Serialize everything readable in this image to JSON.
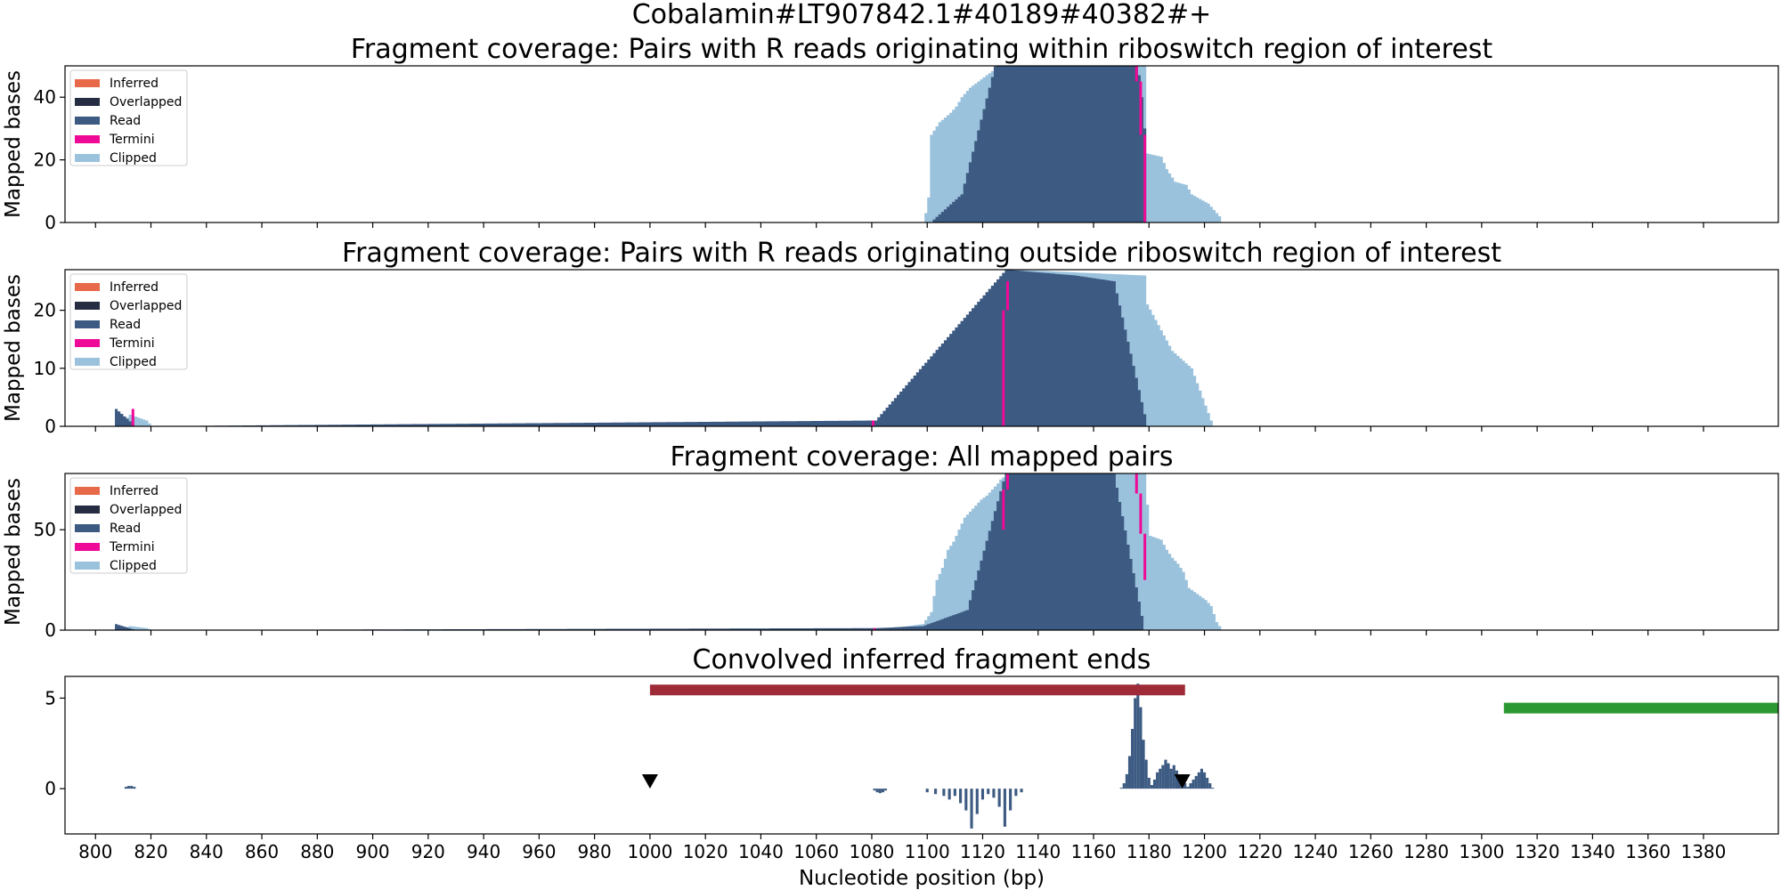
{
  "figure": {
    "suptitle": "Cobalamin#LT907842.1#40189#40382#+",
    "xlabel": "Nucleotide position (bp)",
    "ylabel": "Mapped bases",
    "x_ticks": [
      800,
      820,
      840,
      860,
      880,
      900,
      920,
      940,
      960,
      980,
      1000,
      1020,
      1040,
      1060,
      1080,
      1100,
      1120,
      1140,
      1160,
      1180,
      1200,
      1220,
      1240,
      1260,
      1280,
      1300,
      1320,
      1340,
      1360,
      1380
    ],
    "legend": [
      {
        "label": "Inferred",
        "color": "#e8694a"
      },
      {
        "label": "Overlapped",
        "color": "#262d42"
      },
      {
        "label": "Read",
        "color": "#3c5a82"
      },
      {
        "label": "Termini",
        "color": "#ee0a96"
      },
      {
        "label": "Clipped",
        "color": "#9bc2dc"
      }
    ]
  },
  "chart_data": [
    {
      "type": "area",
      "title": "Fragment coverage: Pairs with R reads originating within riboswitch region of interest",
      "ylabel": "Mapped bases",
      "xlim": [
        789,
        1407
      ],
      "ylim": [
        0,
        50
      ],
      "yticks": [
        0,
        20,
        40
      ],
      "series": [
        {
          "name": "Clipped",
          "color": "#9bc2dc",
          "points": [
            [
              1099,
              3
            ],
            [
              1100,
              8
            ],
            [
              1101,
              28
            ],
            [
              1104,
              32
            ],
            [
              1108,
              35
            ],
            [
              1110,
              37
            ],
            [
              1112,
              40
            ],
            [
              1115,
              43
            ],
            [
              1118,
              45
            ],
            [
              1121,
              47
            ],
            [
              1124,
              49
            ],
            [
              1126,
              50
            ],
            [
              1128,
              60
            ],
            [
              1178,
              60
            ],
            [
              1179,
              22
            ],
            [
              1184,
              21
            ],
            [
              1186,
              17
            ],
            [
              1189,
              13
            ],
            [
              1193,
              12
            ],
            [
              1195,
              9
            ],
            [
              1197,
              8
            ],
            [
              1199,
              7
            ],
            [
              1201,
              6
            ],
            [
              1203,
              4
            ],
            [
              1204,
              3
            ],
            [
              1205,
              2
            ],
            [
              1206,
              0
            ]
          ]
        },
        {
          "name": "Read",
          "color": "#3c5a82",
          "points": [
            [
              1102,
              1
            ],
            [
              1112,
              9
            ],
            [
              1127,
              60
            ],
            [
              1175,
              60
            ],
            [
              1176,
              47
            ],
            [
              1177,
              40
            ],
            [
              1178,
              30
            ],
            [
              1179,
              0
            ]
          ]
        },
        {
          "name": "Termini",
          "color": "#ee0a96",
          "segments": [
            [
              1175.5,
              45,
              50
            ],
            [
              1177,
              28,
              45
            ],
            [
              1178.5,
              0,
              28
            ]
          ]
        }
      ]
    },
    {
      "type": "area",
      "title": "Fragment coverage: Pairs with R reads originating outside riboswitch region of interest",
      "ylabel": "Mapped bases",
      "xlim": [
        789,
        1407
      ],
      "ylim": [
        0,
        27
      ],
      "yticks": [
        0,
        10,
        20
      ],
      "series": [
        {
          "name": "Clipped",
          "color": "#9bc2dc",
          "points": [
            [
              808,
              0
            ],
            [
              812,
              2
            ],
            [
              818,
              1
            ],
            [
              820,
              0
            ],
            [
              1081,
              0
            ],
            [
              1103,
              3
            ],
            [
              1107,
              6
            ],
            [
              1117,
              11
            ],
            [
              1118,
              14
            ],
            [
              1120,
              16
            ],
            [
              1122,
              18
            ],
            [
              1124,
              19
            ],
            [
              1125,
              20
            ],
            [
              1126,
              22
            ],
            [
              1128,
              24
            ],
            [
              1129,
              26
            ],
            [
              1131,
              27
            ],
            [
              1178,
              26
            ],
            [
              1179,
              21
            ],
            [
              1188,
              13
            ],
            [
              1195,
              10
            ],
            [
              1202,
              1
            ],
            [
              1203,
              0
            ]
          ]
        },
        {
          "name": "Read",
          "color": "#3c5a82",
          "points": [
            [
              807,
              3
            ],
            [
              814,
              0
            ],
            [
              1081,
              1
            ],
            [
              1128,
              27
            ],
            [
              1153,
              26
            ],
            [
              1167,
              25
            ],
            [
              1179,
              0
            ]
          ]
        },
        {
          "name": "Termini",
          "color": "#ee0a96",
          "segments": [
            [
              813.5,
              0,
              3
            ],
            [
              1080.5,
              0,
              1
            ],
            [
              1127.5,
              0,
              20
            ],
            [
              1129,
              20,
              25
            ]
          ]
        }
      ]
    },
    {
      "type": "area",
      "title": "Fragment coverage: All mapped pairs",
      "ylabel": "Mapped bases",
      "xlim": [
        789,
        1407
      ],
      "ylim": [
        0,
        78
      ],
      "yticks": [
        0,
        50
      ],
      "series": [
        {
          "name": "Clipped",
          "color": "#9bc2dc",
          "points": [
            [
              808,
              0
            ],
            [
              812,
              2
            ],
            [
              818,
              1
            ],
            [
              820,
              0
            ],
            [
              1081,
              0
            ],
            [
              1098,
              3
            ],
            [
              1101,
              9
            ],
            [
              1103,
              25
            ],
            [
              1105,
              31
            ],
            [
              1107,
              40
            ],
            [
              1109,
              44
            ],
            [
              1111,
              50
            ],
            [
              1113,
              56
            ],
            [
              1115,
              59
            ],
            [
              1117,
              62
            ],
            [
              1119,
              65
            ],
            [
              1121,
              67
            ],
            [
              1123,
              70
            ],
            [
              1125,
              73
            ],
            [
              1126,
              75
            ],
            [
              1128,
              77
            ],
            [
              1130,
              79
            ],
            [
              1178,
              78
            ],
            [
              1180,
              47
            ],
            [
              1184,
              45
            ],
            [
              1186,
              40
            ],
            [
              1188,
              36
            ],
            [
              1190,
              33
            ],
            [
              1192,
              29
            ],
            [
              1194,
              21
            ],
            [
              1196,
              19
            ],
            [
              1198,
              17
            ],
            [
              1200,
              15
            ],
            [
              1202,
              12
            ],
            [
              1204,
              4
            ],
            [
              1206,
              0
            ]
          ]
        },
        {
          "name": "Read",
          "color": "#3c5a82",
          "points": [
            [
              807,
              3
            ],
            [
              814,
              0
            ],
            [
              1081,
              1
            ],
            [
              1098,
              2
            ],
            [
              1114,
              10
            ],
            [
              1128,
              79
            ],
            [
              1153,
              78
            ],
            [
              1167,
              78
            ],
            [
              1178,
              0
            ]
          ]
        },
        {
          "name": "Termini",
          "color": "#ee0a96",
          "segments": [
            [
              1081,
              0,
              1
            ],
            [
              1127.5,
              50,
              70
            ],
            [
              1129,
              70,
              78
            ],
            [
              1175.5,
              68,
              78
            ],
            [
              1177,
              48,
              68
            ],
            [
              1178.5,
              25,
              48
            ]
          ]
        }
      ]
    },
    {
      "type": "bar",
      "title": "Convolved inferred fragment ends",
      "xlim": [
        789,
        1407
      ],
      "ylim": [
        -2.5,
        6.2
      ],
      "yticks": [
        0,
        5
      ],
      "series": [
        {
          "name": "",
          "color": "#3c5a82",
          "points": [
            [
              810,
              0
            ],
            [
              811,
              0.1
            ],
            [
              812,
              0.15
            ],
            [
              813,
              0.15
            ],
            [
              814,
              0.1
            ],
            [
              815,
              0
            ],
            [
              1080,
              0
            ],
            [
              1081,
              -0.1
            ],
            [
              1082,
              -0.2
            ],
            [
              1083,
              -0.25
            ],
            [
              1084,
              -0.2
            ],
            [
              1085,
              -0.1
            ],
            [
              1086,
              0
            ],
            [
              1099,
              0
            ],
            [
              1100,
              -0.2
            ],
            [
              1103,
              -0.3
            ],
            [
              1106,
              -0.4
            ],
            [
              1108,
              -0.6
            ],
            [
              1110,
              -0.4
            ],
            [
              1112,
              -0.8
            ],
            [
              1114,
              -1.2
            ],
            [
              1116,
              -2.2
            ],
            [
              1118,
              -1.4
            ],
            [
              1120,
              -0.6
            ],
            [
              1122,
              -0.3
            ],
            [
              1124,
              -0.5
            ],
            [
              1126,
              -1.0
            ],
            [
              1128,
              -2.1
            ],
            [
              1130,
              -1.2
            ],
            [
              1132,
              -0.4
            ],
            [
              1134,
              -0.2
            ],
            [
              1136,
              0
            ],
            [
              1170,
              0.05
            ],
            [
              1171,
              0.3
            ],
            [
              1172,
              0.8
            ],
            [
              1173,
              1.8
            ],
            [
              1174,
              3.3
            ],
            [
              1175,
              5.0
            ],
            [
              1176,
              5.8
            ],
            [
              1177,
              4.5
            ],
            [
              1178,
              2.7
            ],
            [
              1179,
              1.6
            ],
            [
              1180,
              0.6
            ],
            [
              1181,
              0.2
            ],
            [
              1182,
              0.5
            ],
            [
              1183,
              0.9
            ],
            [
              1184,
              1.1
            ],
            [
              1185,
              1.3
            ],
            [
              1186,
              1.6
            ],
            [
              1187,
              1.4
            ],
            [
              1188,
              1.1
            ],
            [
              1189,
              1.3
            ],
            [
              1190,
              1.0
            ],
            [
              1191,
              0.7
            ],
            [
              1192,
              0.5
            ],
            [
              1193,
              0.3
            ],
            [
              1194,
              0.1
            ],
            [
              1195,
              0.3
            ],
            [
              1196,
              0.5
            ],
            [
              1197,
              0.7
            ],
            [
              1198,
              0.9
            ],
            [
              1199,
              1.1
            ],
            [
              1200,
              0.9
            ],
            [
              1201,
              0.6
            ],
            [
              1202,
              0.3
            ],
            [
              1203,
              0.05
            ]
          ]
        }
      ],
      "markers": [
        [
          1000,
          0.4
        ],
        [
          1192,
          0.4
        ]
      ],
      "ranges": [
        {
          "x1": 1000,
          "x2": 1193,
          "y": 5.45,
          "color": "#a02b38"
        },
        {
          "x1": 1308,
          "x2": 1407,
          "y": 4.45,
          "color": "#2b9832"
        }
      ]
    }
  ]
}
